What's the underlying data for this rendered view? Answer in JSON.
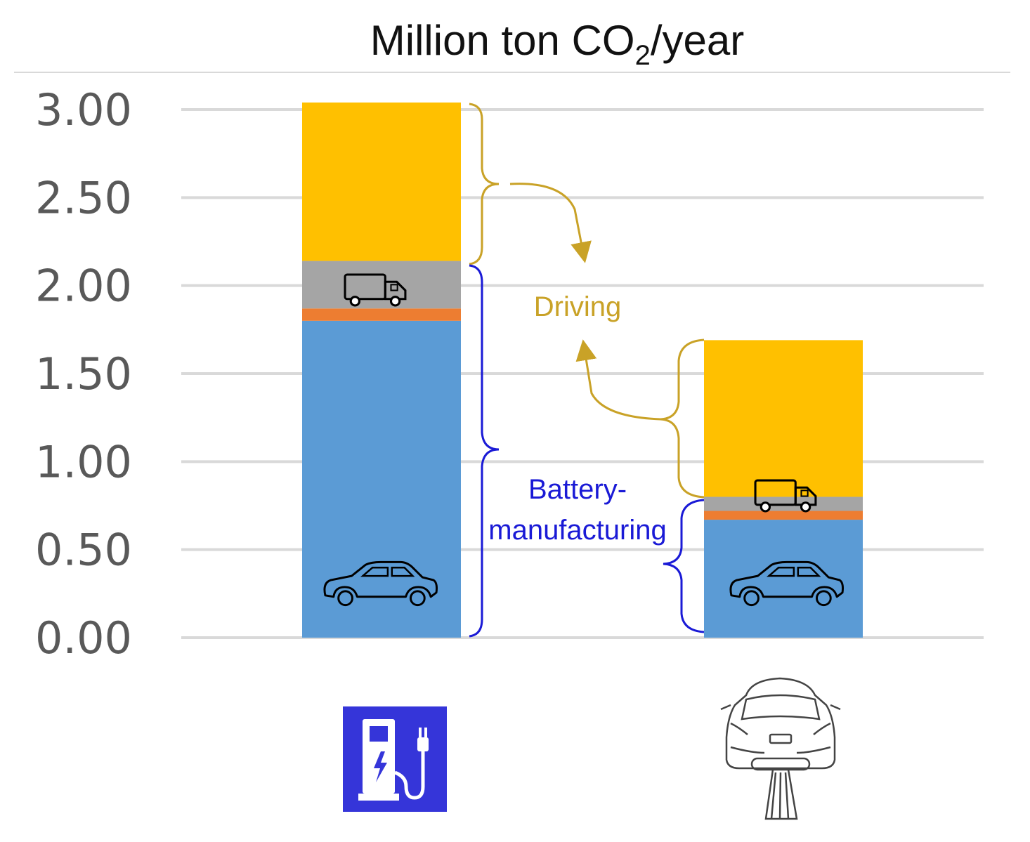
{
  "chart_data": {
    "type": "bar",
    "stacked": true,
    "title": "Million ton CO",
    "title_subscript": "2",
    "title_suffix": "/year",
    "xlabel": "",
    "ylabel": "",
    "ylim": [
      0,
      3.0
    ],
    "yticks": [
      "0.00",
      "0.50",
      "1.00",
      "1.50",
      "2.00",
      "2.50",
      "3.00"
    ],
    "ytick_values": [
      0,
      0.5,
      1.0,
      1.5,
      2.0,
      2.5,
      3.0
    ],
    "grid": true,
    "categories": [
      "charging-station",
      "conductive-road"
    ],
    "category_icons": [
      "ev-charging-station-icon",
      "car-on-road-rail-icon"
    ],
    "series": [
      {
        "key": "car",
        "icon": "car-icon",
        "color": "#5b9bd5",
        "values": [
          1.8,
          0.67
        ]
      },
      {
        "key": "orange",
        "color": "#ed7d31",
        "values": [
          0.07,
          0.05
        ]
      },
      {
        "key": "truck",
        "icon": "truck-icon",
        "color": "#a5a5a5",
        "values": [
          0.27,
          0.08
        ]
      },
      {
        "key": "driving",
        "color": "#ffc000",
        "values": [
          0.9,
          0.89
        ]
      }
    ],
    "annotations": {
      "driving": "Driving",
      "battery_line1": "Battery-",
      "battery_line2": "manufacturing"
    },
    "colors": {
      "gridline": "#d9d9d9",
      "driving_bracket": "#c9a227",
      "battery_bracket": "#1a1ad6",
      "station_bg": "#3535d9"
    }
  }
}
